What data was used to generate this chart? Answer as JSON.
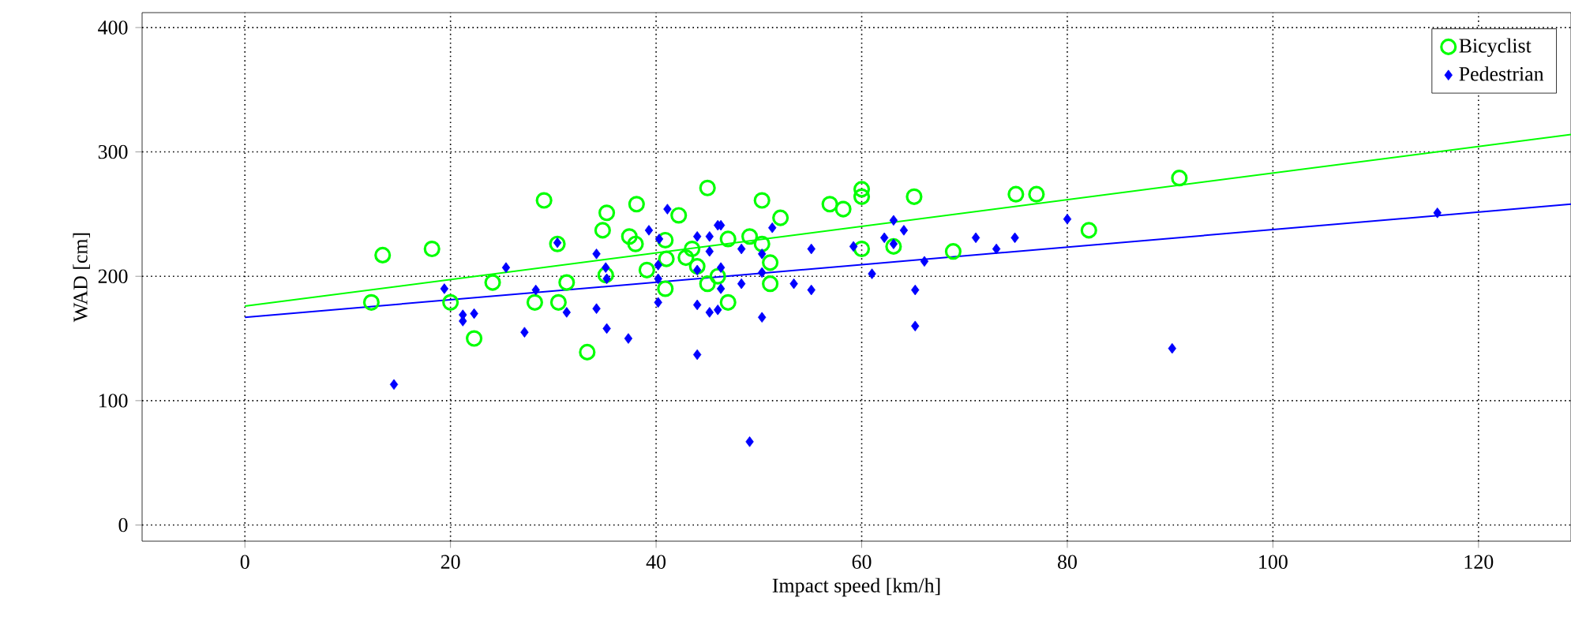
{
  "chart_data": {
    "type": "scatter",
    "xlabel": "Impact speed [km/h]",
    "ylabel": "WAD [cm]",
    "xlim": [
      -10,
      129
    ],
    "ylim": [
      -13,
      412
    ],
    "xticks": [
      0,
      20,
      40,
      60,
      80,
      100,
      120
    ],
    "yticks": [
      0,
      100,
      200,
      300,
      400
    ],
    "grid": true,
    "legend": "top right",
    "series": [
      {
        "name": "Bicyclist",
        "color": "#00ff00",
        "marker": "circle",
        "x": [
          13.4,
          18.2,
          12.3,
          20.0,
          22.3,
          24.1,
          29.1,
          30.4,
          28.2,
          30.5,
          31.3,
          33.3,
          35.2,
          34.8,
          38.1,
          37.4,
          39.1,
          35.1,
          42.2,
          45.0,
          40.9,
          40.9,
          42.9,
          50.3,
          52.1,
          47.0,
          49.1,
          50.3,
          51.1,
          51.1,
          47.0,
          45.0,
          56.9,
          58.2,
          60.0,
          60.0,
          60.0,
          63.1,
          65.1,
          68.9,
          75.0,
          77.0,
          82.1,
          90.9,
          43.5,
          41,
          44,
          38,
          46
        ],
        "values": [
          217,
          222,
          179,
          179,
          150,
          195,
          261,
          226,
          179,
          179,
          195,
          139,
          251,
          237,
          258,
          232,
          205,
          201,
          249,
          271,
          229,
          190,
          215,
          261,
          247,
          230,
          232,
          226,
          211,
          194,
          179,
          194,
          258,
          254,
          270,
          264,
          222,
          224,
          264,
          220,
          266,
          266,
          237,
          279,
          222,
          214,
          208,
          226,
          200
        ]
      },
      {
        "name": "Pedestrian",
        "color": "#0000ff",
        "marker": "diamond",
        "x": [
          14.5,
          19.4,
          21.2,
          22.3,
          21.2,
          25.4,
          27.2,
          28.3,
          30.4,
          31.3,
          34.2,
          34.2,
          35.2,
          35.1,
          35.2,
          37.3,
          41.1,
          39.3,
          40.3,
          40.2,
          40.2,
          40.2,
          44.0,
          44.0,
          45.2,
          45.2,
          46.0,
          44.0,
          45.2,
          46.0,
          44.0,
          46.3,
          46.3,
          46.3,
          48.3,
          48.3,
          50.3,
          51.3,
          50.3,
          50.3,
          49.1,
          53.4,
          55.1,
          55.1,
          59.2,
          61.0,
          62.2,
          63.1,
          63.1,
          64.1,
          65.2,
          65.2,
          66.1,
          71.1,
          73.1,
          74.9,
          80.0,
          90.2,
          116
        ],
        "values": [
          113,
          190,
          169,
          170,
          164,
          207,
          155,
          189,
          227,
          171,
          174,
          218,
          158,
          207,
          198,
          150,
          254,
          237,
          230,
          209,
          198,
          179,
          137,
          232,
          232,
          220,
          241,
          177,
          171,
          173,
          205,
          241,
          207,
          190,
          222,
          194,
          218,
          239,
          203,
          167,
          67,
          194,
          222,
          189,
          224,
          202,
          231,
          245,
          226,
          237,
          189,
          160,
          212,
          231,
          222,
          231,
          246,
          142,
          251
        ]
      },
      {
        "type": "line",
        "color": "#00ff00",
        "x": [
          0,
          129
        ],
        "values": [
          176,
          314
        ]
      },
      {
        "type": "line",
        "color": "#0000ff",
        "x": [
          0,
          129
        ],
        "values": [
          167,
          258
        ]
      }
    ]
  }
}
